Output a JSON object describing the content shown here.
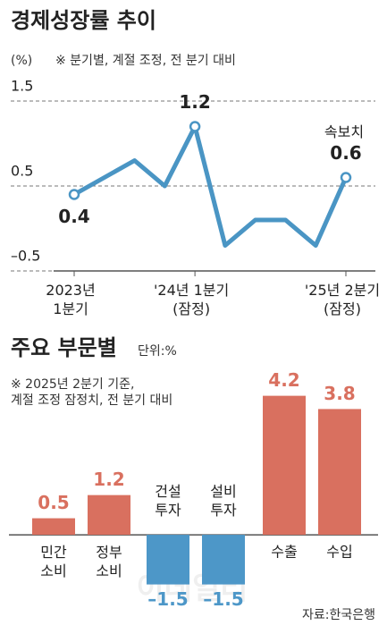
{
  "chart_data": [
    {
      "type": "line",
      "title": "경제성장률 추이",
      "unit": "(%)",
      "note": "※ 분기별, 계절 조정, 전 분기 대비",
      "categories": [
        "2023년\n1분기",
        null,
        null,
        null,
        "'24년 1분기\n(잠정)",
        null,
        null,
        null,
        null,
        "'25년 2분기\n(잠정)"
      ],
      "values": [
        0.4,
        0.6,
        0.8,
        0.5,
        1.2,
        -0.2,
        0.1,
        0.1,
        -0.2,
        0.6
      ],
      "value_labels": [
        "0.4",
        null,
        null,
        null,
        "1.2",
        null,
        null,
        null,
        null,
        "0.6"
      ],
      "annotation": "속보치",
      "color": "#4a95c4",
      "ylim": [
        -0.5,
        1.5
      ],
      "yticks": [
        1.5,
        0.5,
        {
          "value": -0.5,
          "label": "–0.5"
        }
      ],
      "grid": true
    },
    {
      "type": "bar",
      "title": "주요 부문별",
      "unit": "단위:%",
      "note": "※ 2025년 2분기 기준,\n계절 조정 잠정치, 전 분기 대비",
      "categories": [
        "민간\n소비",
        "정부\n소비",
        "건설\n투자",
        "설비\n투자",
        "수출",
        "수입"
      ],
      "values": [
        0.5,
        1.2,
        -1.5,
        -1.5,
        4.2,
        3.8
      ],
      "value_labels": [
        "0.5",
        "1.2",
        "–1.5",
        "–1.5",
        "4.2",
        "3.8"
      ],
      "colors": [
        "#d9705f",
        "#d9705f",
        "#4d97c8",
        "#4d97c8",
        "#d9705f",
        "#d9705f"
      ],
      "ylim": [
        -2.7,
        5.0
      ],
      "source": "자료:한국은행",
      "watermark": "이데일리"
    }
  ]
}
